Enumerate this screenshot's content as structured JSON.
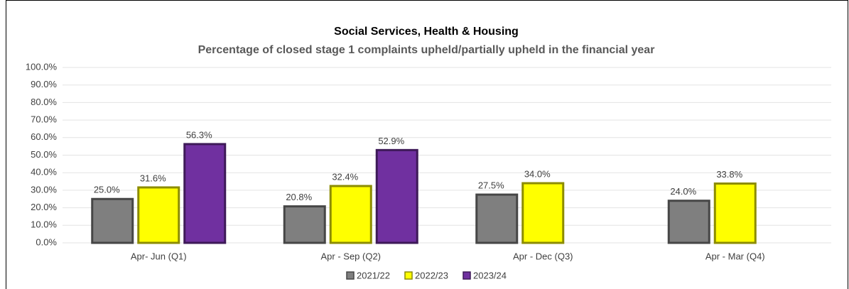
{
  "chart_data": {
    "type": "bar",
    "title": "Social Services, Health & Housing",
    "subtitle": "Percentage of closed stage 1 complaints upheld/partially upheld in the financial year",
    "categories": [
      "Apr- Jun  (Q1)",
      "Apr - Sep  (Q2)",
      "Apr - Dec  (Q3)",
      "Apr - Mar  (Q4)"
    ],
    "series": [
      {
        "name": "2021/22",
        "color": "#7f7f7f",
        "values": [
          25.0,
          20.8,
          27.5,
          24.0
        ],
        "value_labels": [
          "25.0%",
          "20.8%",
          "27.5%",
          "24.0%"
        ]
      },
      {
        "name": "2022/23",
        "color": "#ffff00",
        "values": [
          31.6,
          32.4,
          34.0,
          33.8
        ],
        "value_labels": [
          "31.6%",
          "32.4%",
          "34.0%",
          "33.8%"
        ]
      },
      {
        "name": "2023/24",
        "color": "#7030a0",
        "values": [
          56.3,
          52.9,
          null,
          null
        ],
        "value_labels": [
          "56.3%",
          "52.9%",
          null,
          null
        ]
      }
    ],
    "ylim": [
      0,
      100
    ],
    "yticks": [
      {
        "value": 0,
        "label": "0.0%"
      },
      {
        "value": 10,
        "label": "10.0%"
      },
      {
        "value": 20,
        "label": "20.0%"
      },
      {
        "value": 30,
        "label": "30.0%"
      },
      {
        "value": 40,
        "label": "40.0%"
      },
      {
        "value": 50,
        "label": "50.0%"
      },
      {
        "value": 60,
        "label": "60.0%"
      },
      {
        "value": 70,
        "label": "70.0%"
      },
      {
        "value": 80,
        "label": "80.0%"
      },
      {
        "value": 90,
        "label": "90.0%"
      },
      {
        "value": 100,
        "label": "100.0%"
      }
    ],
    "grid": true,
    "legend": "bottom"
  }
}
